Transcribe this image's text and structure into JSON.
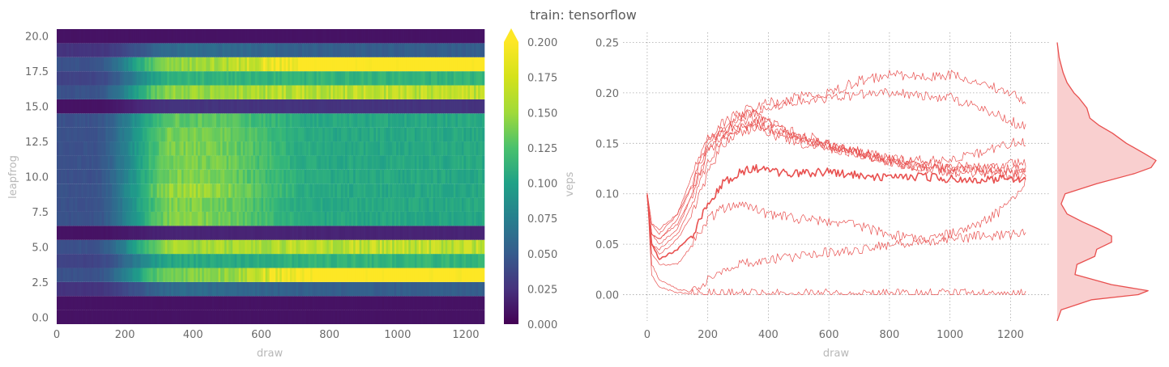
{
  "title": "train: tensorflow",
  "colors": {
    "line": "#e8504f",
    "kde_fill": "#f9cfcf",
    "tick_text": "#6b6b6b",
    "label_text": "#b8b8b8"
  },
  "chart_data": [
    {
      "type": "heatmap",
      "xlabel": "draw",
      "ylabel": "leapfrog",
      "colormap": "viridis",
      "x_range": [
        0,
        1250
      ],
      "y_range": [
        -0.5,
        20.5
      ],
      "xticks": [
        "0",
        "200",
        "400",
        "600",
        "800",
        "1000",
        "1200"
      ],
      "yticks": [
        "0.0",
        "2.5",
        "5.0",
        "7.5",
        "10.0",
        "12.5",
        "15.0",
        "17.5",
        "20.0"
      ],
      "colorbar": {
        "label": "veps",
        "range": [
          0,
          0.2
        ],
        "extend": "max",
        "ticks": [
          "0.000",
          "0.025",
          "0.050",
          "0.075",
          "0.100",
          "0.125",
          "0.150",
          "0.175",
          "0.200"
        ]
      },
      "rows": [
        {
          "leapfrog": 0,
          "early": 0.01,
          "mid": 0.01,
          "late": 0.01
        },
        {
          "leapfrog": 1,
          "early": 0.01,
          "mid": 0.01,
          "late": 0.01
        },
        {
          "leapfrog": 2,
          "early": 0.03,
          "mid": 0.07,
          "late": 0.06
        },
        {
          "leapfrog": 3,
          "early": 0.05,
          "mid": 0.16,
          "late": 0.21
        },
        {
          "leapfrog": 4,
          "early": 0.04,
          "mid": 0.12,
          "late": 0.13
        },
        {
          "leapfrog": 5,
          "early": 0.05,
          "mid": 0.17,
          "late": 0.18
        },
        {
          "leapfrog": 6,
          "early": 0.01,
          "mid": 0.02,
          "late": 0.02
        },
        {
          "leapfrog": 7,
          "early": 0.05,
          "mid": 0.16,
          "late": 0.12
        },
        {
          "leapfrog": 8,
          "early": 0.05,
          "mid": 0.16,
          "late": 0.12
        },
        {
          "leapfrog": 9,
          "early": 0.05,
          "mid": 0.17,
          "late": 0.12
        },
        {
          "leapfrog": 10,
          "early": 0.05,
          "mid": 0.16,
          "late": 0.12
        },
        {
          "leapfrog": 11,
          "early": 0.05,
          "mid": 0.16,
          "late": 0.12
        },
        {
          "leapfrog": 12,
          "early": 0.05,
          "mid": 0.16,
          "late": 0.12
        },
        {
          "leapfrog": 13,
          "early": 0.05,
          "mid": 0.16,
          "late": 0.12
        },
        {
          "leapfrog": 14,
          "early": 0.05,
          "mid": 0.15,
          "late": 0.12
        },
        {
          "leapfrog": 15,
          "early": 0.01,
          "mid": 0.03,
          "late": 0.03
        },
        {
          "leapfrog": 16,
          "early": 0.05,
          "mid": 0.17,
          "late": 0.18
        },
        {
          "leapfrog": 17,
          "early": 0.04,
          "mid": 0.13,
          "late": 0.13
        },
        {
          "leapfrog": 18,
          "early": 0.05,
          "mid": 0.17,
          "late": 0.21
        },
        {
          "leapfrog": 19,
          "early": 0.03,
          "mid": 0.07,
          "late": 0.06
        },
        {
          "leapfrog": 20,
          "early": 0.01,
          "mid": 0.01,
          "late": 0.01
        }
      ]
    },
    {
      "type": "line",
      "xlabel": "draw",
      "ylabel": "",
      "x_range": [
        -80,
        1330
      ],
      "y_range": [
        -0.026,
        0.26
      ],
      "grid": true,
      "xticks": [
        "0",
        "200",
        "400",
        "600",
        "800",
        "1000",
        "1200"
      ],
      "yticks": [
        "0.00",
        "0.05",
        "0.10",
        "0.15",
        "0.20",
        "0.25"
      ],
      "series": [
        {
          "bold": true,
          "x": [
            0,
            15,
            40,
            100,
            150,
            200,
            250,
            300,
            350,
            400,
            500,
            600,
            700,
            800,
            900,
            1000,
            1100,
            1200,
            1250
          ],
          "y": [
            0.1,
            0.05,
            0.035,
            0.045,
            0.06,
            0.09,
            0.11,
            0.12,
            0.126,
            0.122,
            0.12,
            0.122,
            0.118,
            0.116,
            0.117,
            0.115,
            0.114,
            0.115,
            0.112
          ]
        },
        {
          "bold": false,
          "x": [
            0,
            15,
            40,
            100,
            150,
            200,
            250,
            300,
            350,
            400,
            500,
            600,
            700,
            800,
            900,
            1000,
            1100,
            1200,
            1250
          ],
          "y": [
            0.1,
            0.07,
            0.065,
            0.08,
            0.11,
            0.15,
            0.16,
            0.175,
            0.182,
            0.17,
            0.155,
            0.148,
            0.14,
            0.132,
            0.126,
            0.124,
            0.123,
            0.12,
            0.12
          ]
        },
        {
          "bold": false,
          "x": [
            0,
            15,
            40,
            100,
            150,
            200,
            250,
            300,
            350,
            400,
            500,
            600,
            700,
            800,
            900,
            1000,
            1100,
            1200,
            1250
          ],
          "y": [
            0.1,
            0.06,
            0.055,
            0.07,
            0.1,
            0.14,
            0.16,
            0.17,
            0.175,
            0.17,
            0.16,
            0.15,
            0.142,
            0.135,
            0.13,
            0.128,
            0.126,
            0.125,
            0.124
          ]
        },
        {
          "bold": false,
          "x": [
            0,
            15,
            40,
            100,
            150,
            200,
            250,
            300,
            350,
            400,
            500,
            600,
            700,
            800,
            900,
            1000,
            1100,
            1200,
            1250
          ],
          "y": [
            0.1,
            0.05,
            0.045,
            0.06,
            0.09,
            0.13,
            0.155,
            0.165,
            0.17,
            0.165,
            0.155,
            0.145,
            0.14,
            0.132,
            0.126,
            0.122,
            0.12,
            0.118,
            0.118
          ]
        },
        {
          "bold": false,
          "x": [
            0,
            15,
            40,
            100,
            150,
            200,
            250,
            300,
            350,
            400,
            500,
            600,
            700,
            800,
            900,
            1000,
            1100,
            1200,
            1250
          ],
          "y": [
            0.1,
            0.06,
            0.05,
            0.065,
            0.1,
            0.145,
            0.16,
            0.165,
            0.168,
            0.165,
            0.155,
            0.148,
            0.14,
            0.133,
            0.128,
            0.126,
            0.125,
            0.13,
            0.132
          ]
        },
        {
          "bold": false,
          "x": [
            0,
            15,
            40,
            100,
            150,
            200,
            250,
            300,
            350,
            400,
            500,
            600,
            700,
            800,
            900,
            1000,
            1100,
            1200,
            1250
          ],
          "y": [
            0.1,
            0.05,
            0.04,
            0.055,
            0.08,
            0.12,
            0.15,
            0.16,
            0.165,
            0.16,
            0.15,
            0.145,
            0.14,
            0.135,
            0.133,
            0.135,
            0.14,
            0.15,
            0.152
          ]
        },
        {
          "bold": false,
          "x": [
            0,
            15,
            40,
            100,
            150,
            200,
            250,
            300,
            350,
            400,
            500,
            600,
            700,
            800,
            900,
            1000,
            1100,
            1200,
            1250
          ],
          "y": [
            0.1,
            0.07,
            0.06,
            0.08,
            0.12,
            0.155,
            0.17,
            0.18,
            0.185,
            0.19,
            0.196,
            0.2,
            0.212,
            0.218,
            0.215,
            0.218,
            0.21,
            0.2,
            0.192
          ]
        },
        {
          "bold": false,
          "x": [
            0,
            15,
            40,
            100,
            150,
            200,
            250,
            300,
            350,
            400,
            500,
            600,
            700,
            800,
            900,
            1000,
            1100,
            1200,
            1250
          ],
          "y": [
            0.1,
            0.06,
            0.055,
            0.075,
            0.11,
            0.15,
            0.165,
            0.175,
            0.18,
            0.185,
            0.192,
            0.195,
            0.198,
            0.2,
            0.198,
            0.195,
            0.185,
            0.172,
            0.166
          ]
        },
        {
          "bold": false,
          "x": [
            0,
            15,
            40,
            100,
            150,
            200,
            250,
            300,
            350,
            400,
            500,
            600,
            700,
            800,
            900,
            1000,
            1100,
            1200,
            1250
          ],
          "y": [
            0.1,
            0.04,
            0.03,
            0.03,
            0.05,
            0.075,
            0.085,
            0.09,
            0.085,
            0.08,
            0.075,
            0.072,
            0.068,
            0.06,
            0.055,
            0.06,
            0.07,
            0.09,
            0.115
          ]
        },
        {
          "bold": false,
          "x": [
            0,
            15,
            40,
            100,
            150,
            200,
            250,
            300,
            350,
            400,
            500,
            600,
            700,
            800,
            900,
            1000,
            1100,
            1200,
            1250
          ],
          "y": [
            0.1,
            0.03,
            0.015,
            0.005,
            0.003,
            0.015,
            0.025,
            0.03,
            0.032,
            0.035,
            0.038,
            0.042,
            0.045,
            0.05,
            0.052,
            0.055,
            0.058,
            0.06,
            0.064
          ]
        },
        {
          "bold": false,
          "x": [
            0,
            15,
            40,
            100,
            150,
            200,
            250,
            300,
            350,
            400,
            500,
            600,
            700,
            800,
            900,
            1000,
            1100,
            1200,
            1250
          ],
          "y": [
            0.1,
            0.02,
            0.008,
            0.002,
            0.001,
            0.001,
            0.001,
            0.001,
            0.001,
            0.001,
            0.001,
            0.001,
            0.001,
            0.001,
            0.001,
            0.001,
            0.001,
            0.001,
            0.001
          ]
        }
      ]
    },
    {
      "type": "area",
      "orientation": "horizontal",
      "description_of": "density of veps values",
      "y": [
        -0.026,
        -0.015,
        -0.005,
        0.0,
        0.004,
        0.01,
        0.02,
        0.03,
        0.038,
        0.045,
        0.052,
        0.058,
        0.065,
        0.072,
        0.08,
        0.09,
        0.1,
        0.11,
        0.12,
        0.126,
        0.133,
        0.14,
        0.15,
        0.16,
        0.168,
        0.175,
        0.185,
        0.195,
        0.2,
        0.21,
        0.22,
        0.235,
        0.25
      ],
      "density": [
        0.0,
        0.04,
        0.35,
        0.82,
        0.92,
        0.55,
        0.18,
        0.2,
        0.38,
        0.4,
        0.55,
        0.55,
        0.42,
        0.26,
        0.1,
        0.04,
        0.08,
        0.4,
        0.78,
        0.95,
        1.0,
        0.88,
        0.7,
        0.56,
        0.42,
        0.33,
        0.3,
        0.22,
        0.17,
        0.1,
        0.06,
        0.02,
        0.0
      ]
    }
  ]
}
